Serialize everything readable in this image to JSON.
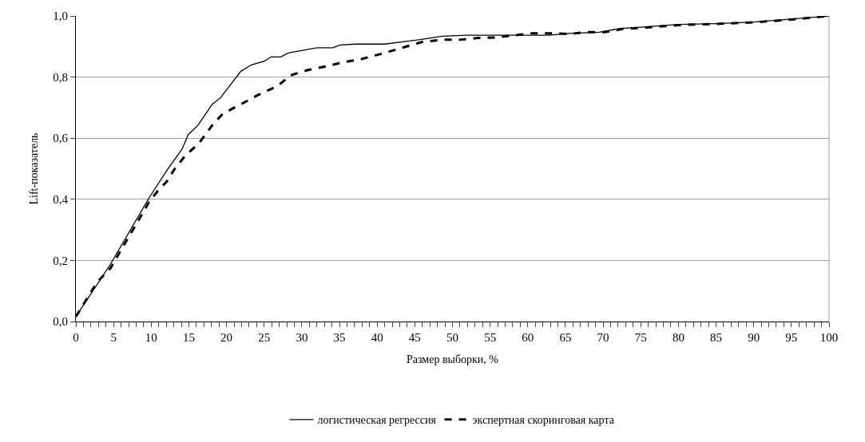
{
  "chart_data": {
    "type": "line",
    "xlabel": "Размер выборки, %",
    "ylabel": "Lift-показатель",
    "legend": "bottom",
    "grid": "y",
    "marker": "none",
    "xlim": [
      0,
      100
    ],
    "ylim": [
      0,
      1
    ],
    "xticks": [
      0,
      {
        "value": 1,
        "label": null
      },
      {
        "value": 2,
        "label": null
      },
      {
        "value": 3,
        "label": null
      },
      {
        "value": 4,
        "label": null
      },
      5,
      {
        "value": 6,
        "label": null
      },
      {
        "value": 7,
        "label": null
      },
      {
        "value": 8,
        "label": null
      },
      {
        "value": 9,
        "label": null
      },
      10,
      {
        "value": 11,
        "label": null
      },
      {
        "value": 12,
        "label": null
      },
      {
        "value": 13,
        "label": null
      },
      {
        "value": 14,
        "label": null
      },
      15,
      {
        "value": 16,
        "label": null
      },
      {
        "value": 17,
        "label": null
      },
      {
        "value": 18,
        "label": null
      },
      {
        "value": 19,
        "label": null
      },
      20,
      {
        "value": 21,
        "label": null
      },
      {
        "value": 22,
        "label": null
      },
      {
        "value": 23,
        "label": null
      },
      {
        "value": 24,
        "label": null
      },
      25,
      {
        "value": 26,
        "label": null
      },
      {
        "value": 27,
        "label": null
      },
      {
        "value": 28,
        "label": null
      },
      {
        "value": 29,
        "label": null
      },
      30,
      {
        "value": 31,
        "label": null
      },
      {
        "value": 32,
        "label": null
      },
      {
        "value": 33,
        "label": null
      },
      {
        "value": 34,
        "label": null
      },
      35,
      {
        "value": 36,
        "label": null
      },
      {
        "value": 37,
        "label": null
      },
      {
        "value": 38,
        "label": null
      },
      {
        "value": 39,
        "label": null
      },
      40,
      {
        "value": 41,
        "label": null
      },
      {
        "value": 42,
        "label": null
      },
      {
        "value": 43,
        "label": null
      },
      {
        "value": 44,
        "label": null
      },
      45,
      {
        "value": 46,
        "label": null
      },
      {
        "value": 47,
        "label": null
      },
      {
        "value": 48,
        "label": null
      },
      {
        "value": 49,
        "label": null
      },
      50,
      {
        "value": 51,
        "label": null
      },
      {
        "value": 52,
        "label": null
      },
      {
        "value": 53,
        "label": null
      },
      {
        "value": 54,
        "label": null
      },
      55,
      {
        "value": 56,
        "label": null
      },
      {
        "value": 57,
        "label": null
      },
      {
        "value": 58,
        "label": null
      },
      {
        "value": 59,
        "label": null
      },
      60,
      {
        "value": 61,
        "label": null
      },
      {
        "value": 62,
        "label": null
      },
      {
        "value": 63,
        "label": null
      },
      {
        "value": 64,
        "label": null
      },
      65,
      {
        "value": 66,
        "label": null
      },
      {
        "value": 67,
        "label": null
      },
      {
        "value": 68,
        "label": null
      },
      {
        "value": 69,
        "label": null
      },
      70,
      {
        "value": 71,
        "label": null
      },
      {
        "value": 72,
        "label": null
      },
      {
        "value": 73,
        "label": null
      },
      {
        "value": 74,
        "label": null
      },
      75,
      {
        "value": 76,
        "label": null
      },
      {
        "value": 77,
        "label": null
      },
      {
        "value": 78,
        "label": null
      },
      {
        "value": 79,
        "label": null
      },
      80,
      {
        "value": 81,
        "label": null
      },
      {
        "value": 82,
        "label": null
      },
      {
        "value": 83,
        "label": null
      },
      {
        "value": 84,
        "label": null
      },
      85,
      {
        "value": 86,
        "label": null
      },
      {
        "value": 87,
        "label": null
      },
      {
        "value": 88,
        "label": null
      },
      {
        "value": 89,
        "label": null
      },
      90,
      {
        "value": 91,
        "label": null
      },
      {
        "value": 92,
        "label": null
      },
      {
        "value": 93,
        "label": null
      },
      {
        "value": 94,
        "label": null
      },
      95,
      {
        "value": 96,
        "label": null
      },
      {
        "value": 97,
        "label": null
      },
      {
        "value": 98,
        "label": null
      },
      {
        "value": 99,
        "label": null
      },
      100
    ],
    "yticks": [
      {
        "value": 0,
        "label": "0,0"
      },
      {
        "value": 0.2,
        "label": "0,2"
      },
      {
        "value": 0.4,
        "label": "0,4"
      },
      {
        "value": 0.6,
        "label": "0,6"
      },
      {
        "value": 0.8,
        "label": "0,8"
      },
      {
        "value": 1,
        "label": "1,0"
      }
    ],
    "series": [
      {
        "name": "логистическая регрессия",
        "color": "#000000",
        "line_style": "solid",
        "x": [
          0,
          4.6,
          9.8,
          12.2,
          14.1,
          14.9,
          16.2,
          18.1,
          19.2,
          21.9,
          23.3,
          25.1,
          25.9,
          27.2,
          28.2,
          32,
          34.1,
          35.1,
          37.2,
          41,
          45.5,
          48.7,
          51.9,
          62.8,
          65.6,
          69.5,
          72.3,
          75,
          80,
          85,
          90,
          95,
          100
        ],
        "values": [
          0.016,
          0.188,
          0.408,
          0.499,
          0.564,
          0.611,
          0.642,
          0.711,
          0.732,
          0.819,
          0.84,
          0.853,
          0.866,
          0.866,
          0.879,
          0.896,
          0.896,
          0.905,
          0.908,
          0.908,
          0.922,
          0.934,
          0.937,
          0.937,
          0.943,
          0.947,
          0.959,
          0.963,
          0.972,
          0.975,
          0.98,
          0.99,
          1.0
        ]
      },
      {
        "name": "экспертная скоринговая карта",
        "color": "#000000",
        "line_style": "dashed",
        "x": [
          0,
          2.8,
          4.6,
          8.4,
          9.8,
          11.2,
          12,
          13.1,
          14.5,
          16.4,
          18.1,
          19.5,
          21.9,
          24,
          26.8,
          28.5,
          30.8,
          33.4,
          35.5,
          37.6,
          41,
          43.9,
          46,
          48.5,
          51,
          53.4,
          55.9,
          58.3,
          60.5,
          63.3,
          65.6,
          67.8,
          70.3,
          72.7,
          75,
          80,
          85,
          90,
          95,
          100
        ],
        "values": [
          0.016,
          0.128,
          0.175,
          0.335,
          0.395,
          0.437,
          0.456,
          0.499,
          0.542,
          0.585,
          0.642,
          0.68,
          0.711,
          0.739,
          0.771,
          0.806,
          0.823,
          0.836,
          0.849,
          0.857,
          0.879,
          0.9,
          0.915,
          0.922,
          0.922,
          0.928,
          0.93,
          0.937,
          0.943,
          0.943,
          0.941,
          0.947,
          0.947,
          0.958,
          0.961,
          0.97,
          0.974,
          0.979,
          0.988,
          1.0
        ]
      }
    ]
  }
}
